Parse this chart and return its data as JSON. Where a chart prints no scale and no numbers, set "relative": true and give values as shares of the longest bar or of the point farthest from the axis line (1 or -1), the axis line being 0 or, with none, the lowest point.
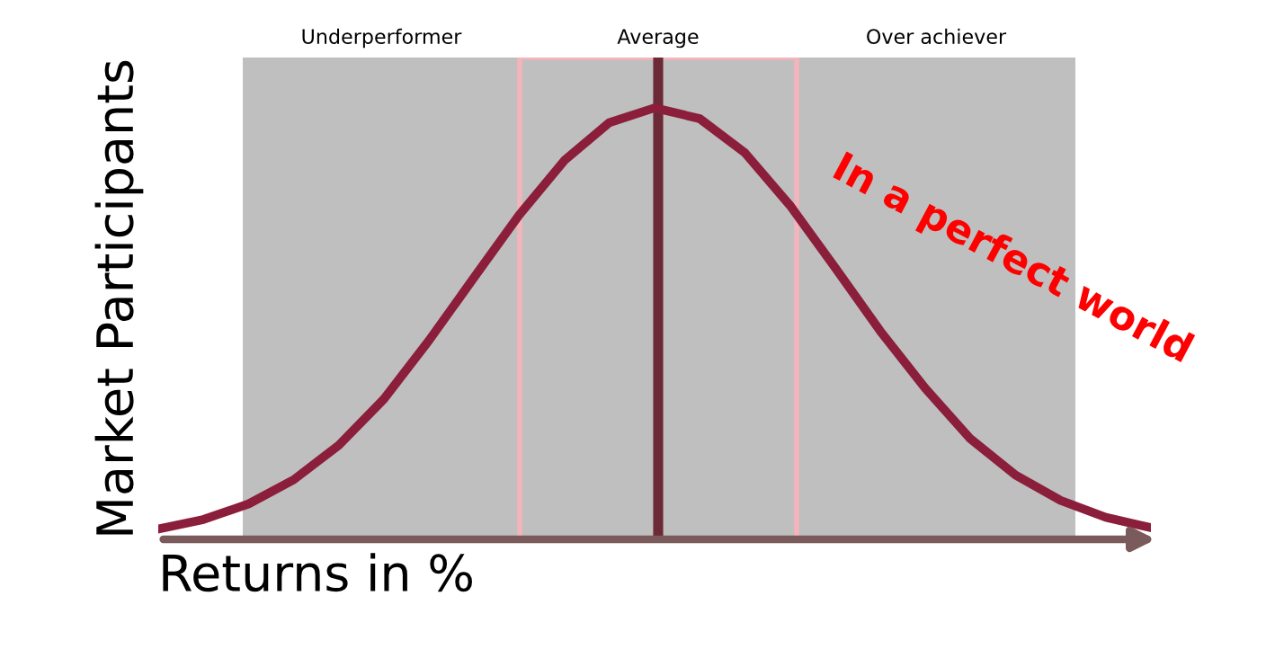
{
  "chart_data": {
    "type": "line",
    "relative": true,
    "xlabel": "Returns in %",
    "ylabel": "Market Participants",
    "categories": [
      null,
      null,
      null,
      null,
      null,
      null,
      null,
      null,
      null,
      null,
      null,
      null,
      null,
      null,
      null,
      null,
      null,
      null,
      null,
      null,
      null,
      null,
      null
    ],
    "series": [
      {
        "color": "#8b1e3a",
        "values": [
          0.024,
          0.046,
          0.082,
          0.138,
          0.218,
          0.325,
          0.461,
          0.607,
          0.752,
          0.878,
          0.966,
          1.0,
          0.975,
          0.896,
          0.774,
          0.63,
          0.483,
          0.35,
          0.233,
          0.149,
          0.09,
          0.051,
          0.027
        ]
      }
    ],
    "annotations": [
      "Underperformer",
      "Average",
      "Over achiever",
      "In a perfect world"
    ],
    "grid": false,
    "legend": false,
    "marker": "none",
    "line_style": "solid"
  }
}
